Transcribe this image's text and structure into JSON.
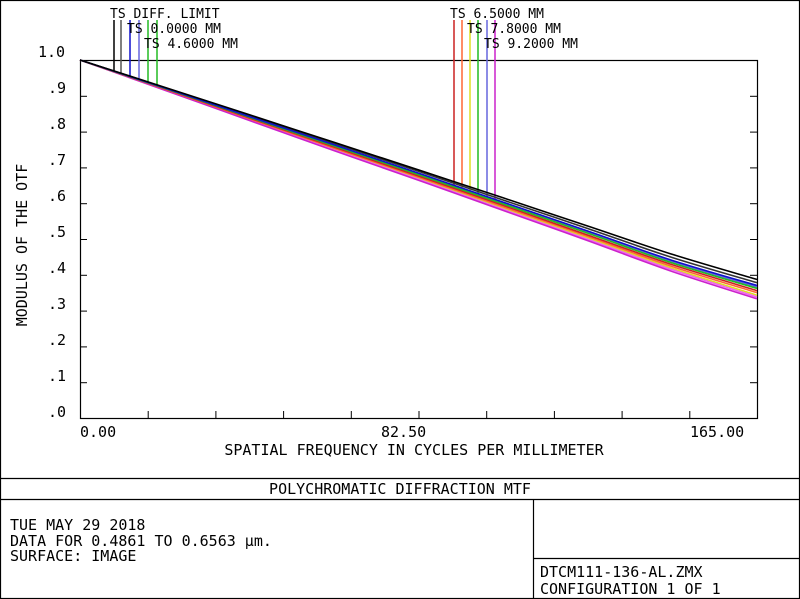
{
  "chart_data": {
    "type": "line",
    "title": "POLYCHROMATIC DIFFRACTION MTF",
    "xlabel": "SPATIAL FREQUENCY IN CYCLES PER MILLIMETER",
    "ylabel": "MODULUS OF THE OTF",
    "xlim": [
      0,
      165
    ],
    "ylim": [
      0,
      1
    ],
    "x_tick_labels": [
      {
        "value": 0,
        "label": "0.00"
      },
      {
        "value": 82.5,
        "label": "82.50"
      },
      {
        "value": 165,
        "label": "165.00"
      }
    ],
    "y_tick_labels": [
      {
        "value": 1.0,
        "label": "1.0"
      },
      {
        "value": 0.9,
        "label": ".9"
      },
      {
        "value": 0.8,
        "label": ".8"
      },
      {
        "value": 0.7,
        "label": ".7"
      },
      {
        "value": 0.6,
        "label": ".6"
      },
      {
        "value": 0.5,
        "label": ".5"
      },
      {
        "value": 0.4,
        "label": ".4"
      },
      {
        "value": 0.3,
        "label": ".3"
      },
      {
        "value": 0.2,
        "label": ".2"
      },
      {
        "value": 0.1,
        "label": ".1"
      },
      {
        "value": 0.0,
        "label": ".0"
      }
    ],
    "grid": false,
    "x": [
      0,
      20.6,
      41.3,
      61.9,
      82.5,
      103.1,
      123.8,
      144.4,
      165
    ],
    "series": [
      {
        "name": "TS DIFF. LIMIT",
        "color": "#000000",
        "values": [
          1.0,
          0.924,
          0.847,
          0.77,
          0.693,
          0.615,
          0.536,
          0.457,
          0.387
        ]
      },
      {
        "name": "TS 0.0000 MM",
        "color": "#1010cc",
        "values": [
          1.0,
          0.922,
          0.842,
          0.763,
          0.684,
          0.603,
          0.522,
          0.44,
          0.37
        ]
      },
      {
        "name": "TS 4.6000 MM",
        "color": "#22bb22",
        "values": [
          1.0,
          0.921,
          0.84,
          0.76,
          0.68,
          0.598,
          0.516,
          0.433,
          0.362
        ]
      },
      {
        "name": "TS 6.5000 MM",
        "color": "#cc2222",
        "values": [
          1.0,
          0.92,
          0.838,
          0.757,
          0.676,
          0.594,
          0.511,
          0.428,
          0.356
        ]
      },
      {
        "name": "TS 7.8000 MM",
        "color": "#ff6633",
        "values": [
          1.0,
          0.919,
          0.836,
          0.754,
          0.673,
          0.59,
          0.507,
          0.423,
          0.35
        ]
      },
      {
        "name": "TS 9.2000 MM",
        "color": "#cc22cc",
        "values": [
          1.0,
          0.916,
          0.831,
          0.747,
          0.664,
          0.58,
          0.495,
          0.409,
          0.333
        ]
      }
    ],
    "extra_curves": [
      {
        "color": "#333333",
        "values": [
          1.0,
          0.923,
          0.845,
          0.767,
          0.689,
          0.609,
          0.529,
          0.448,
          0.378
        ]
      },
      {
        "color": "#6666dd",
        "values": [
          1.0,
          0.921,
          0.841,
          0.761,
          0.682,
          0.601,
          0.519,
          0.437,
          0.366
        ]
      },
      {
        "color": "#dddd22",
        "values": [
          1.0,
          0.918,
          0.834,
          0.751,
          0.669,
          0.586,
          0.503,
          0.418,
          0.343
        ]
      },
      {
        "color": "#ee66ee",
        "values": [
          1.0,
          0.917,
          0.833,
          0.749,
          0.667,
          0.583,
          0.499,
          0.414,
          0.338
        ]
      }
    ],
    "legend": {
      "placement": "top",
      "left_labels": [
        "TS DIFF. LIMIT",
        "TS 0.0000 MM",
        "TS 4.6000 MM"
      ],
      "right_labels": [
        "TS 6.5000 MM",
        "TS 7.8000 MM",
        "TS 9.2000 MM"
      ],
      "left_leader_colors": [
        "#000000",
        "#555555",
        "#1010cc",
        "#6666dd",
        "#22bb22",
        "#22bb22"
      ],
      "right_leader_colors": [
        "#cc2222",
        "#ff6633",
        "#dddd22",
        "#22bb22",
        "#6666dd",
        "#cc22cc"
      ]
    }
  },
  "info": {
    "date": "TUE MAY 29 2018",
    "data_range": "DATA FOR 0.4861 TO 0.6563 µm.",
    "surface": "SURFACE: IMAGE",
    "file": "DTCM111-136-AL.ZMX",
    "configuration": "CONFIGURATION 1 OF 1"
  }
}
